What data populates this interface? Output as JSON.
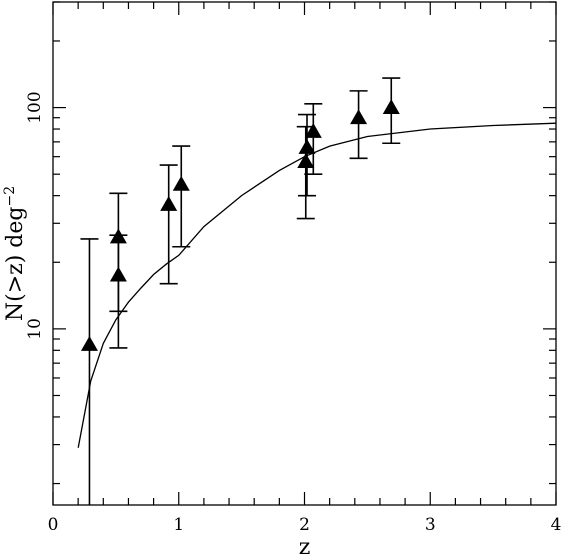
{
  "chart_data": {
    "type": "scatter",
    "title": "",
    "xlabel": "z",
    "ylabel": "N(>z)  deg",
    "ylabel_superscript": "−2",
    "xlim": [
      0,
      4
    ],
    "ylim": [
      1.6,
      300
    ],
    "y_scale": "log",
    "grid": false,
    "x_ticks": [
      {
        "value": 0,
        "label": "0"
      },
      {
        "value": 1,
        "label": "1"
      },
      {
        "value": 2,
        "label": "2"
      },
      {
        "value": 3,
        "label": "3"
      },
      {
        "value": 4,
        "label": "4"
      }
    ],
    "y_ticks": [
      {
        "value": 10,
        "label": "10"
      },
      {
        "value": 100,
        "label": "100"
      }
    ],
    "points": [
      {
        "x": 0.29,
        "y": 8.5,
        "ylow": 1.6,
        "yhigh": 25.5
      },
      {
        "x": 0.52,
        "y": 26.0,
        "ylow": 12.0,
        "yhigh": 41.0
      },
      {
        "x": 0.52,
        "y": 17.5,
        "ylow": 8.2,
        "yhigh": 26.5
      },
      {
        "x": 0.92,
        "y": 36.5,
        "ylow": 16.0,
        "yhigh": 55.0
      },
      {
        "x": 1.02,
        "y": 45.0,
        "ylow": 23.5,
        "yhigh": 67.0
      },
      {
        "x": 2.01,
        "y": 57.0,
        "ylow": 31.5,
        "yhigh": 82.0
      },
      {
        "x": 2.02,
        "y": 66.0,
        "ylow": 40.0,
        "yhigh": 93.0
      },
      {
        "x": 2.07,
        "y": 78.0,
        "ylow": 50.0,
        "yhigh": 104.0
      },
      {
        "x": 2.43,
        "y": 90.0,
        "ylow": 59.0,
        "yhigh": 119.0
      },
      {
        "x": 2.69,
        "y": 100.0,
        "ylow": 69.0,
        "yhigh": 136.0
      }
    ],
    "curve": {
      "x": [
        0.2,
        0.3,
        0.4,
        0.5,
        0.6,
        0.7,
        0.8,
        0.9,
        1.0,
        1.2,
        1.5,
        1.8,
        2.0,
        2.2,
        2.5,
        3.0,
        3.5,
        4.0
      ],
      "y": [
        2.9,
        5.8,
        8.6,
        11.0,
        13.2,
        15.3,
        17.6,
        19.6,
        21.5,
        29.0,
        40.0,
        52.0,
        60.0,
        67.0,
        74.0,
        80.0,
        83.0,
        85.0
      ]
    }
  }
}
